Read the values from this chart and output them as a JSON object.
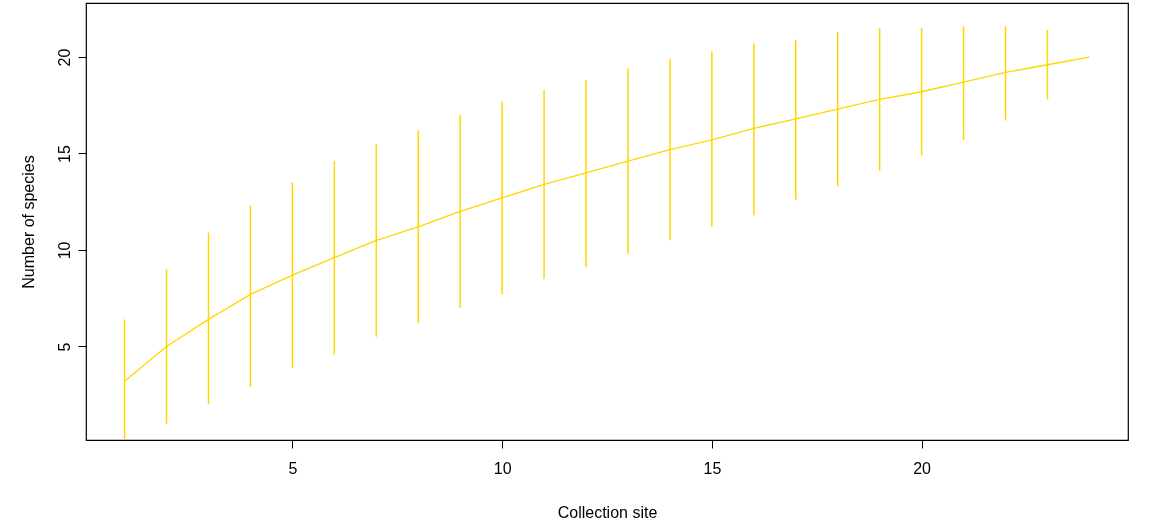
{
  "chart_data": {
    "type": "line",
    "xlabel": "Collection site",
    "ylabel": "Number of species",
    "x": [
      1,
      2,
      3,
      4,
      5,
      6,
      7,
      8,
      9,
      10,
      11,
      12,
      13,
      14,
      15,
      16,
      17,
      18,
      19,
      20,
      21,
      22,
      23,
      24
    ],
    "series": [
      {
        "color": "#ffd700",
        "values": [
          3.2,
          5.0,
          6.4,
          7.7,
          8.7,
          9.6,
          10.5,
          11.2,
          12.0,
          12.7,
          13.4,
          14.0,
          14.6,
          15.2,
          15.7,
          16.3,
          16.8,
          17.3,
          17.8,
          18.2,
          18.7,
          19.2,
          19.6,
          20.0
        ],
        "errors": [
          [
            0.2,
            6.4
          ],
          [
            1.0,
            9.0
          ],
          [
            2.0,
            10.9
          ],
          [
            2.9,
            12.3
          ],
          [
            3.9,
            13.5
          ],
          [
            4.6,
            14.6
          ],
          [
            5.5,
            15.5
          ],
          [
            6.2,
            16.2
          ],
          [
            7.0,
            17.0
          ],
          [
            7.7,
            17.7
          ],
          [
            8.5,
            18.3
          ],
          [
            9.1,
            18.8
          ],
          [
            9.8,
            19.4
          ],
          [
            10.5,
            19.9
          ],
          [
            11.2,
            20.3
          ],
          [
            11.8,
            20.7
          ],
          [
            12.6,
            20.9
          ],
          [
            13.3,
            21.3
          ],
          [
            14.1,
            21.5
          ],
          [
            14.9,
            21.5
          ],
          [
            15.7,
            21.6
          ],
          [
            16.7,
            21.6
          ],
          [
            17.8,
            21.4
          ],
          null
        ]
      }
    ],
    "xlim": [
      0.08,
      24.92
    ],
    "ylim": [
      0.15,
      22.8
    ],
    "xticks": [
      5,
      10,
      15,
      20
    ],
    "yticks": [
      5,
      10,
      15,
      20
    ],
    "grid": false,
    "marker": "none",
    "line_style": "solid"
  }
}
